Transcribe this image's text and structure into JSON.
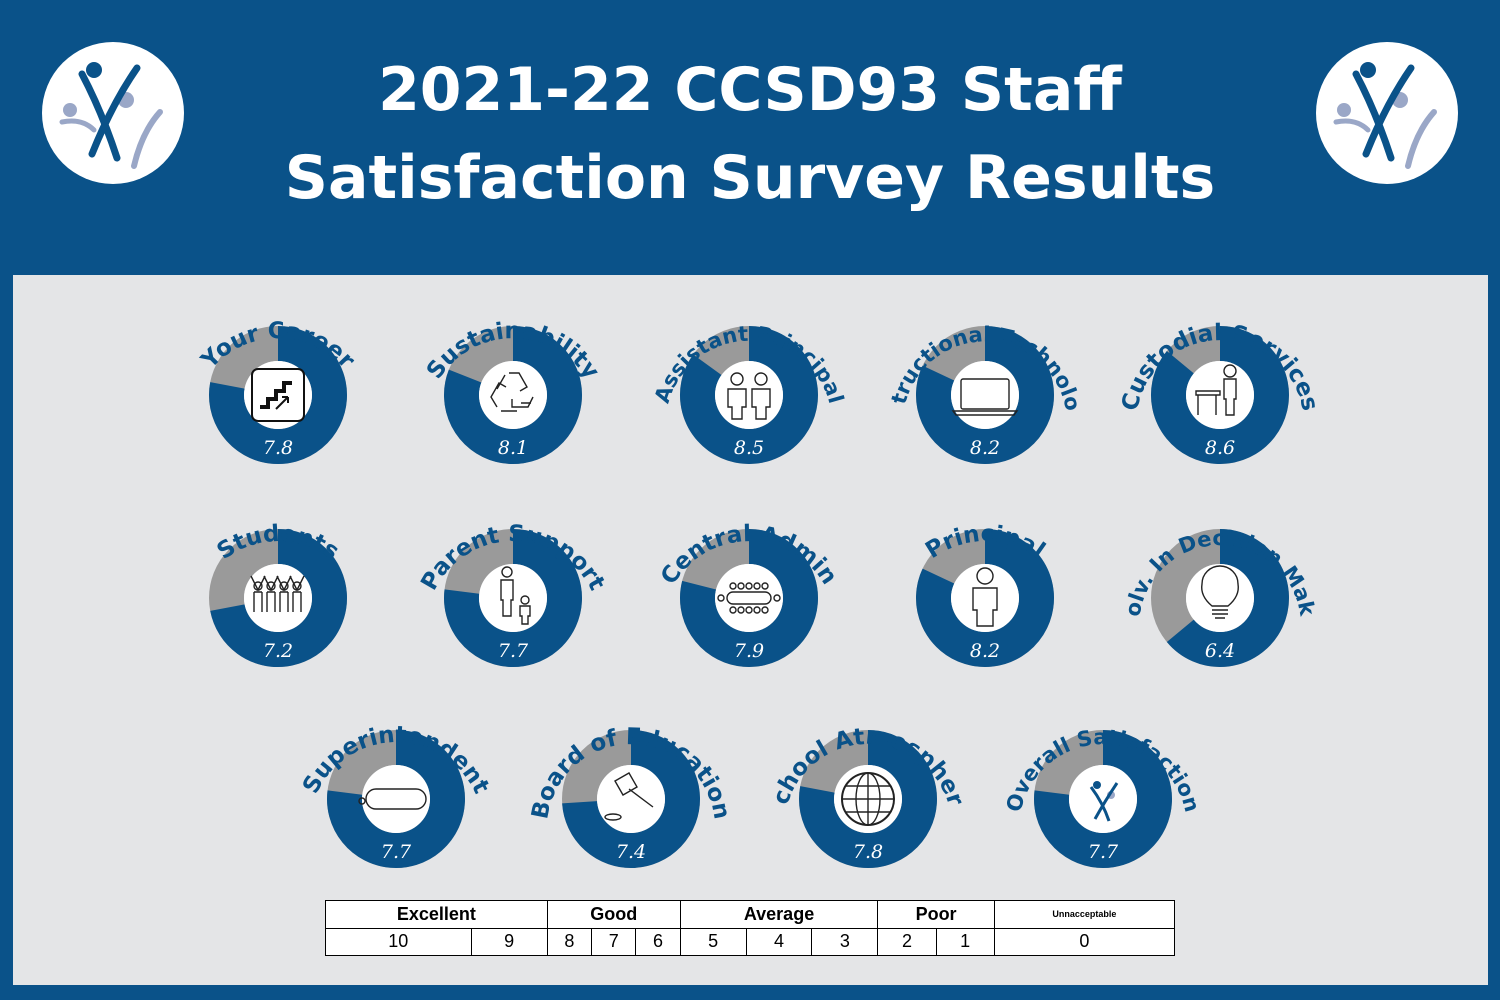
{
  "header": {
    "title_line1": "2021-22 CCSD93 Staff",
    "title_line2": "Satisfaction Survey Results"
  },
  "colors": {
    "brand": "#0a5289",
    "remainder": "#9a9a9a",
    "panel": "#e4e5e7"
  },
  "chart_data": {
    "type": "donut-gauges",
    "scale_max": 10,
    "items": [
      {
        "label": "Your Career",
        "value": 7.8,
        "icon": "stairs-icon"
      },
      {
        "label": "Sustainability",
        "value": 8.1,
        "icon": "recycle-icon"
      },
      {
        "label": "Assistant Principal",
        "value": 8.5,
        "icon": "two-people-icon"
      },
      {
        "label": "Instructional Technology",
        "value": 8.2,
        "icon": "laptop-icon"
      },
      {
        "label": "Custodial Services",
        "value": 8.6,
        "icon": "custodian-icon"
      },
      {
        "label": "Students",
        "value": 7.2,
        "icon": "students-icon"
      },
      {
        "label": "Parent Support",
        "value": 7.7,
        "icon": "parent-child-icon"
      },
      {
        "label": "Central Admin",
        "value": 7.9,
        "icon": "meeting-table-icon"
      },
      {
        "label": "Principal",
        "value": 8.2,
        "icon": "person-icon"
      },
      {
        "label": "Involv. In Decision Making",
        "value": 6.4,
        "icon": "lightbulb-icon"
      },
      {
        "label": "Superintendent",
        "value": 7.7,
        "icon": "desk-icon"
      },
      {
        "label": "Board of Education",
        "value": 7.4,
        "icon": "gavel-icon"
      },
      {
        "label": "School Atmosphere",
        "value": 7.8,
        "icon": "globe-icon"
      },
      {
        "label": "Overall Satisfaction",
        "value": 7.7,
        "icon": "ccsd93-logo-icon"
      }
    ]
  },
  "scale": {
    "categories": [
      "Excellent",
      "Good",
      "Average",
      "Poor",
      "Unnacceptable"
    ],
    "values": [
      "10",
      "9",
      "8",
      "7",
      "6",
      "5",
      "4",
      "3",
      "2",
      "1",
      "0"
    ]
  }
}
